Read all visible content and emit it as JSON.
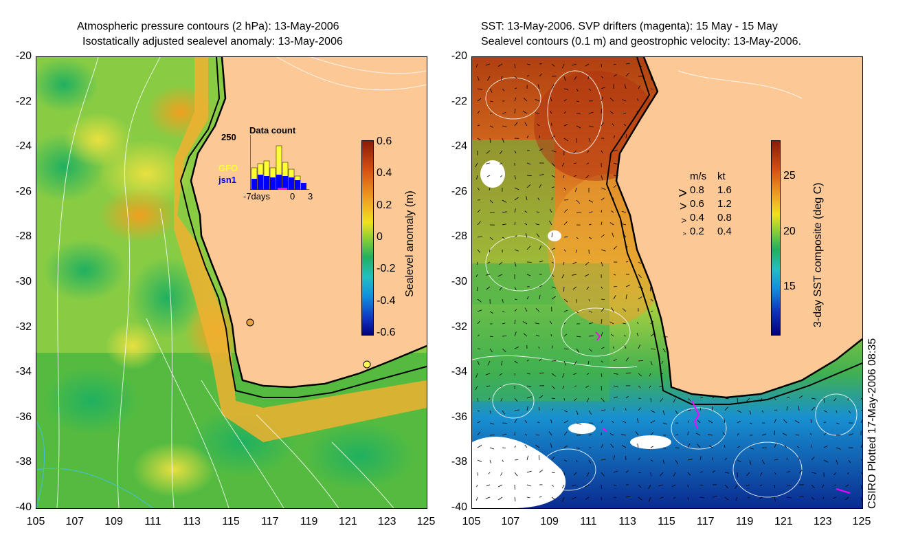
{
  "left_panel": {
    "title_line1": "Atmospheric pressure contours (2 hPa): 13-May-2006",
    "title_line2": "Isostatically adjusted sealevel anomaly: 13-May-2006",
    "yticks": [
      "-20",
      "-22",
      "-24",
      "-26",
      "-28",
      "-30",
      "-32",
      "-34",
      "-36",
      "-38",
      "-40"
    ],
    "xticks": [
      "105",
      "107",
      "109",
      "111",
      "113",
      "115",
      "117",
      "119",
      "121",
      "123",
      "125"
    ],
    "colorbar_title": "Sealevel anomaly (m)",
    "colorbar_ticks": [
      "0.6",
      "0.4",
      "0.2",
      "0",
      "-0.2",
      "-0.4",
      "-0.6"
    ],
    "inset": {
      "title": "Data count",
      "ymax_label": "250",
      "series1": "GFO",
      "series2": "jsn1",
      "xlabel_left": "-7days",
      "xlabel_mid": "0",
      "xlabel_right": "3",
      "series1_color": "#ffff33",
      "series2_color": "#0000ff"
    }
  },
  "right_panel": {
    "title_line1": "SST: 13-May-2006. SVP drifters (magenta): 15 May - 15 May",
    "title_line2": "Sealevel contours (0.1 m) and geostrophic velocity: 13-May-2006.",
    "yticks": [
      "-20",
      "-22",
      "-24",
      "-26",
      "-28",
      "-30",
      "-32",
      "-34",
      "-36",
      "-38",
      "-40"
    ],
    "xticks": [
      "105",
      "107",
      "109",
      "111",
      "113",
      "115",
      "117",
      "119",
      "121",
      "123",
      "125"
    ],
    "colorbar_title": "3-day SST composite (deg C)",
    "colorbar_ticks": [
      "25",
      "20",
      "15"
    ],
    "legend": {
      "header_ms": "m/s",
      "header_kt": "kt",
      "rows": [
        {
          "ms": "0.8",
          "kt": "1.6"
        },
        {
          "ms": "0.6",
          "kt": "1.2"
        },
        {
          "ms": "0.4",
          "kt": "0.8"
        },
        {
          "ms": "0.2",
          "kt": "0.4"
        }
      ]
    }
  },
  "footer": "CSIRO Plotted 17-May-2006 08:35",
  "colors": {
    "land": "#fcc896",
    "drifter": "#ff00ff"
  }
}
